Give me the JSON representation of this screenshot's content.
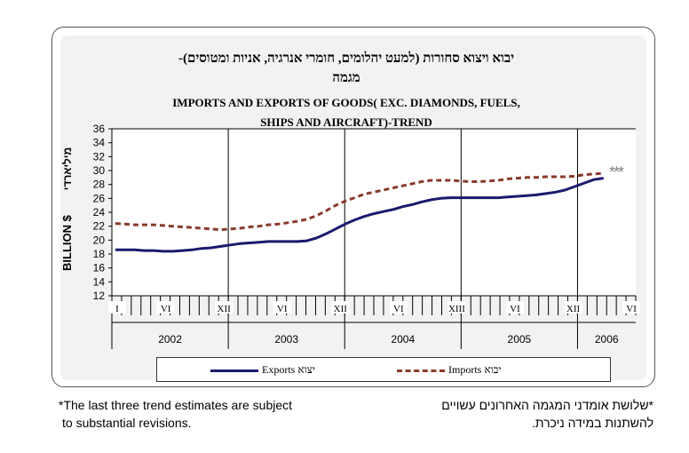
{
  "title_he": [
    "יבוא ויצוא סחורות (למעט יהלומים, חומרי אנרגיה, אניות ומטוסים)-",
    "מגמה"
  ],
  "title_en": [
    "IMPORTS AND EXPORTS OF GOODS( EXC. DIAMONDS, FUELS,",
    "SHIPS AND AIRCRAFT)-TREND"
  ],
  "ylabel": "BILLION $",
  "ylabel_he": "מיליארדי",
  "asterisks": "***",
  "legend": {
    "exports": "Exports  יצוא",
    "imports": "Imports  יבוא"
  },
  "footnote_en": [
    "*The last three trend estimates are subject",
    "to substantial revisions."
  ],
  "footnote_he": [
    "*שלושת אומדני המגמה האחרונים עשויים",
    "להשתנות במידה ניכרת."
  ],
  "colors": {
    "exports": "#1a1a6e",
    "imports": "#8a3a2e"
  },
  "chart_data": {
    "type": "line",
    "ylim": [
      12,
      36
    ],
    "yticks": [
      12,
      14,
      16,
      18,
      20,
      22,
      24,
      26,
      28,
      30,
      32,
      34,
      36
    ],
    "month_labels": [
      "I",
      "VI",
      "XII",
      "VI",
      "XII",
      "VI",
      "XIII",
      "VI",
      "XII",
      "VI"
    ],
    "years": [
      "2002",
      "2003",
      "2004",
      "2005",
      "2006"
    ],
    "series": [
      {
        "name": "Exports  יצוא",
        "values": [
          18.6,
          18.6,
          18.6,
          18.5,
          18.5,
          18.4,
          18.4,
          18.5,
          18.6,
          18.8,
          18.9,
          19.1,
          19.3,
          19.5,
          19.6,
          19.7,
          19.8,
          19.8,
          19.8,
          19.8,
          19.9,
          20.3,
          20.9,
          21.6,
          22.3,
          22.9,
          23.4,
          23.8,
          24.1,
          24.4,
          24.8,
          25.1,
          25.5,
          25.8,
          26.0,
          26.1,
          26.1,
          26.1,
          26.1,
          26.1,
          26.1,
          26.2,
          26.3,
          26.4,
          26.5,
          26.7,
          26.9,
          27.2,
          27.7,
          28.2,
          28.7,
          28.9
        ]
      },
      {
        "name": "Imports  יבוא",
        "values": [
          22.4,
          22.3,
          22.2,
          22.2,
          22.2,
          22.1,
          22.0,
          21.9,
          21.8,
          21.7,
          21.6,
          21.5,
          21.6,
          21.7,
          21.9,
          22.0,
          22.2,
          22.3,
          22.5,
          22.7,
          23.0,
          23.5,
          24.2,
          25.0,
          25.6,
          26.1,
          26.6,
          26.9,
          27.2,
          27.5,
          27.8,
          28.1,
          28.4,
          28.6,
          28.6,
          28.6,
          28.5,
          28.4,
          28.4,
          28.5,
          28.6,
          28.8,
          28.9,
          29.0,
          29.0,
          29.1,
          29.1,
          29.1,
          29.2,
          29.4,
          29.5,
          29.6
        ]
      }
    ]
  }
}
